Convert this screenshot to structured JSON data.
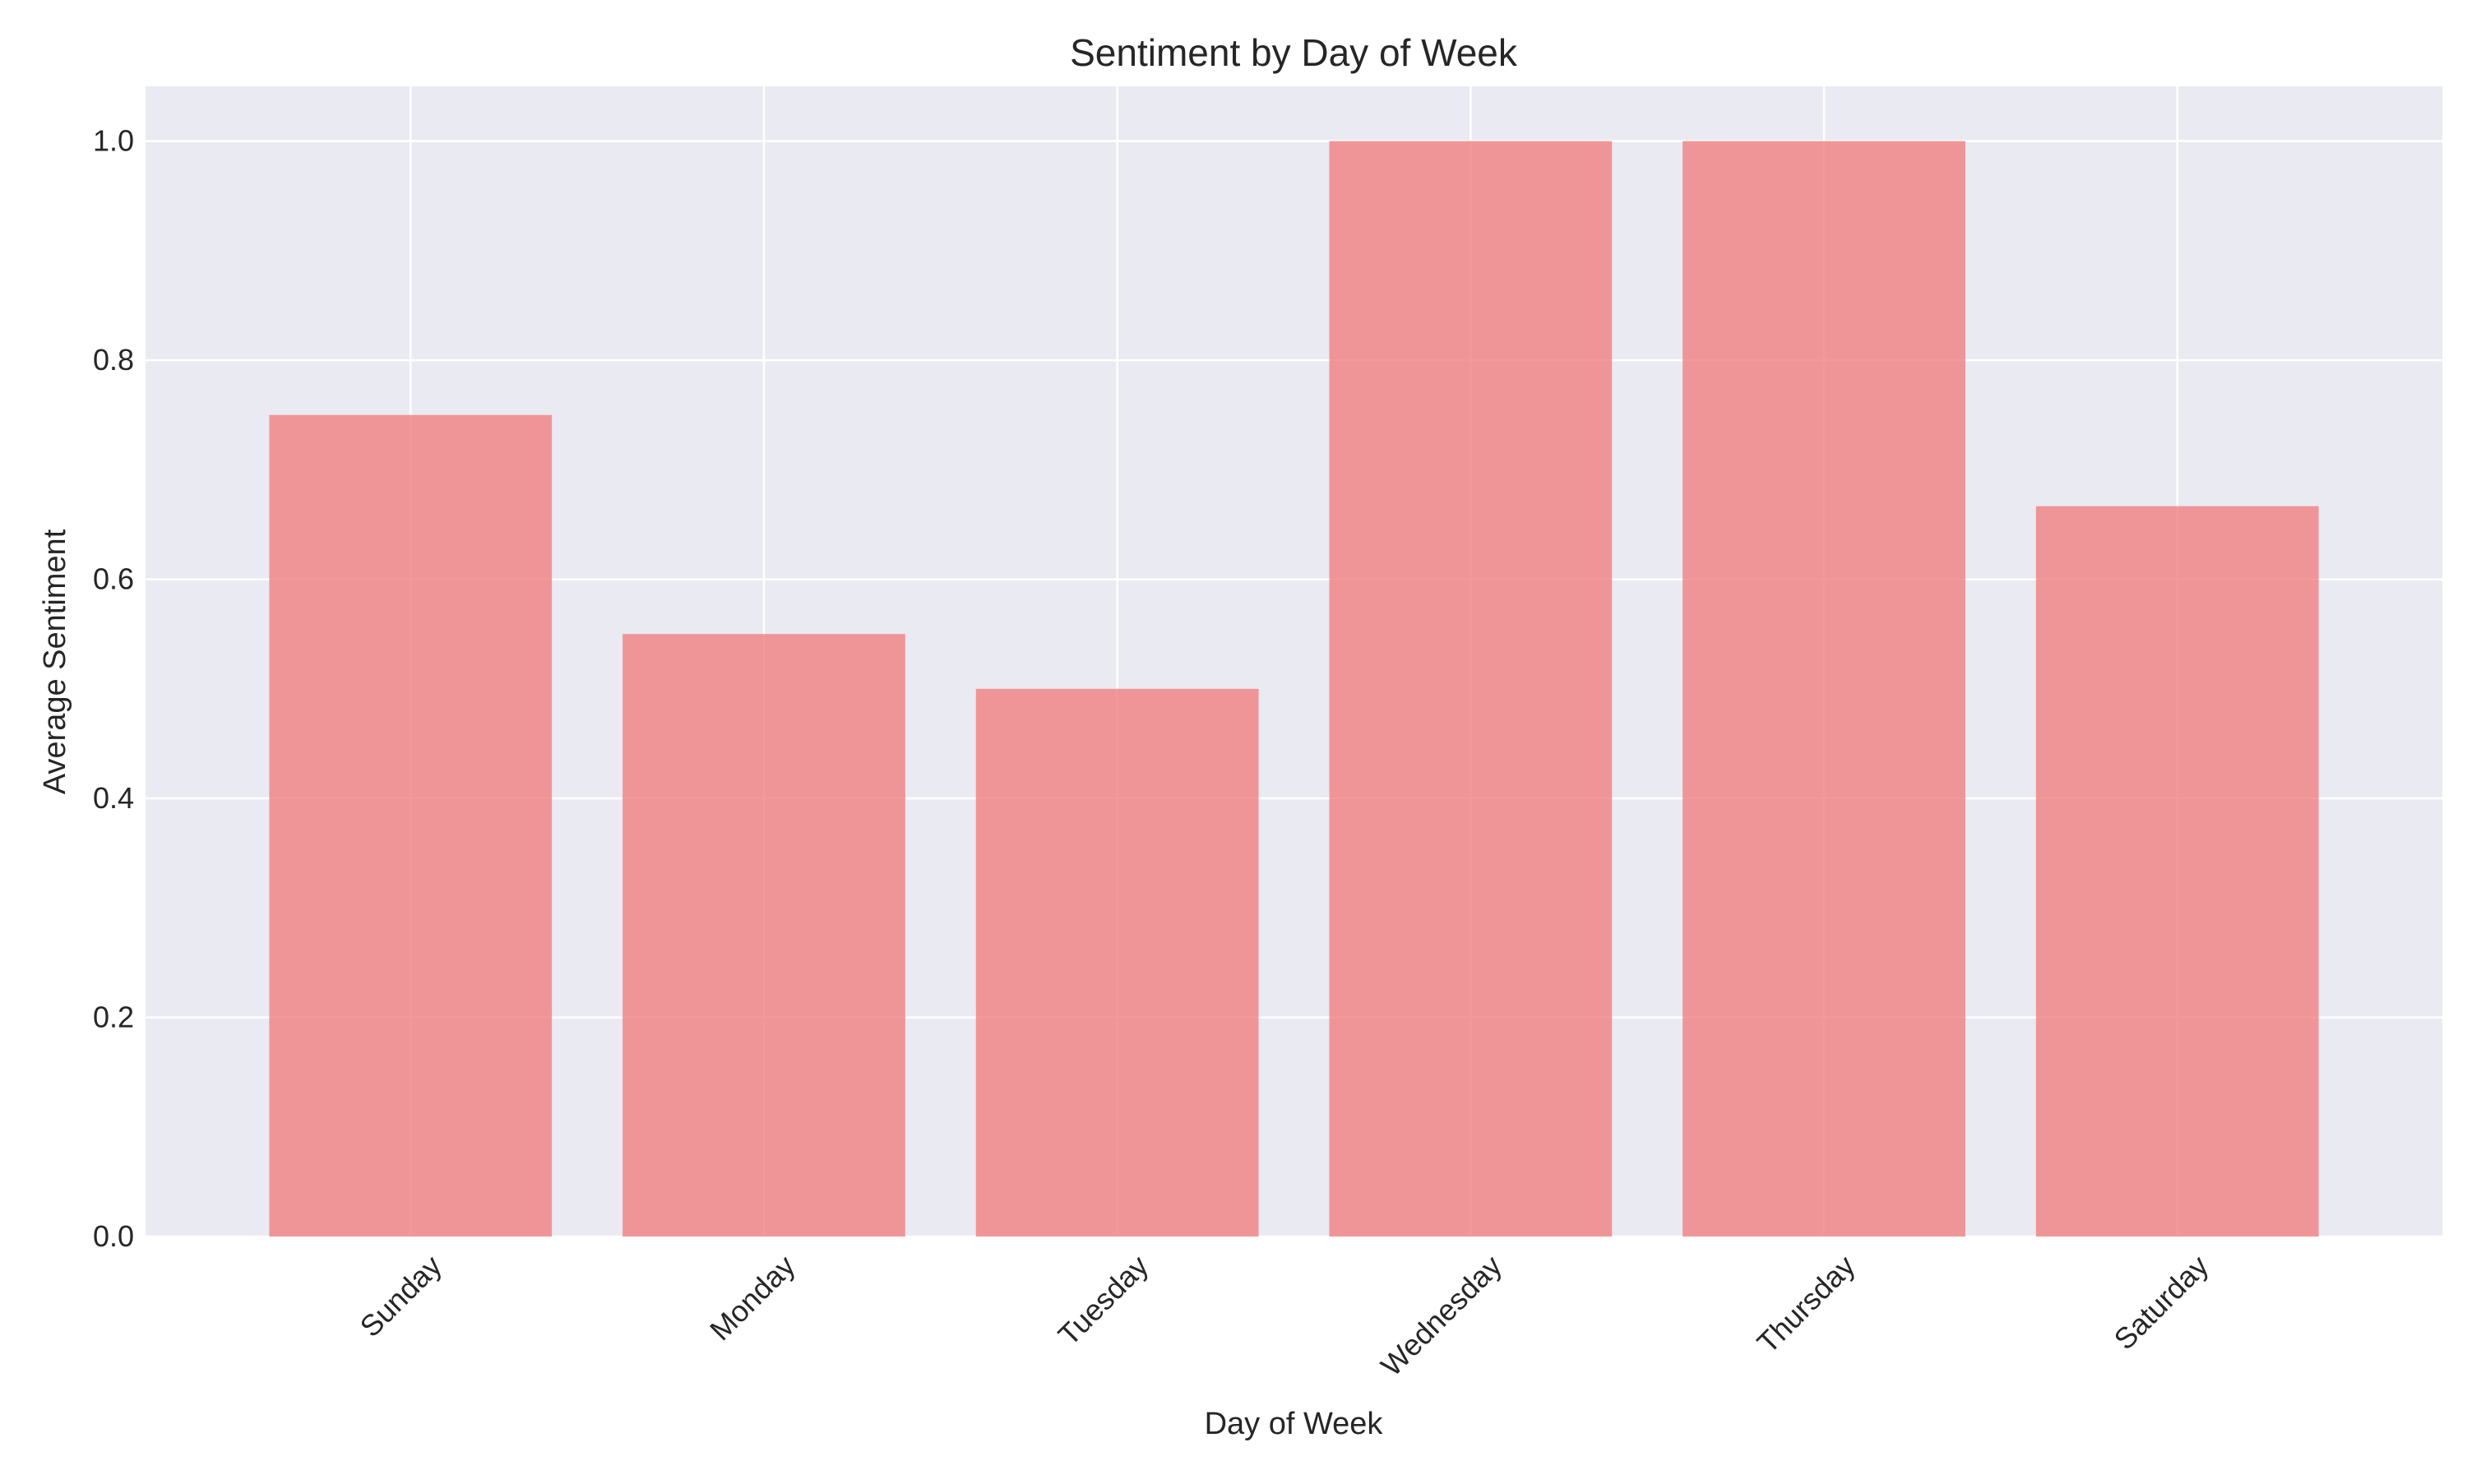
{
  "chart_data": {
    "type": "bar",
    "title": "Sentiment by Day of Week",
    "xlabel": "Day of Week",
    "ylabel": "Average Sentiment",
    "categories": [
      "Sunday",
      "Monday",
      "Tuesday",
      "Wednesday",
      "Thursday",
      "Saturday"
    ],
    "values": [
      0.75,
      0.55,
      0.5,
      1.0,
      1.0,
      0.6667
    ],
    "ylim": [
      0,
      1.05
    ],
    "yticks": [
      "0.0",
      "0.2",
      "0.4",
      "0.6",
      "0.8",
      "1.0"
    ],
    "grid": true,
    "legend": "none"
  },
  "colors": {
    "bar": "#f08080",
    "plot_background": "#eaeaf2",
    "grid": "#ffffff"
  }
}
